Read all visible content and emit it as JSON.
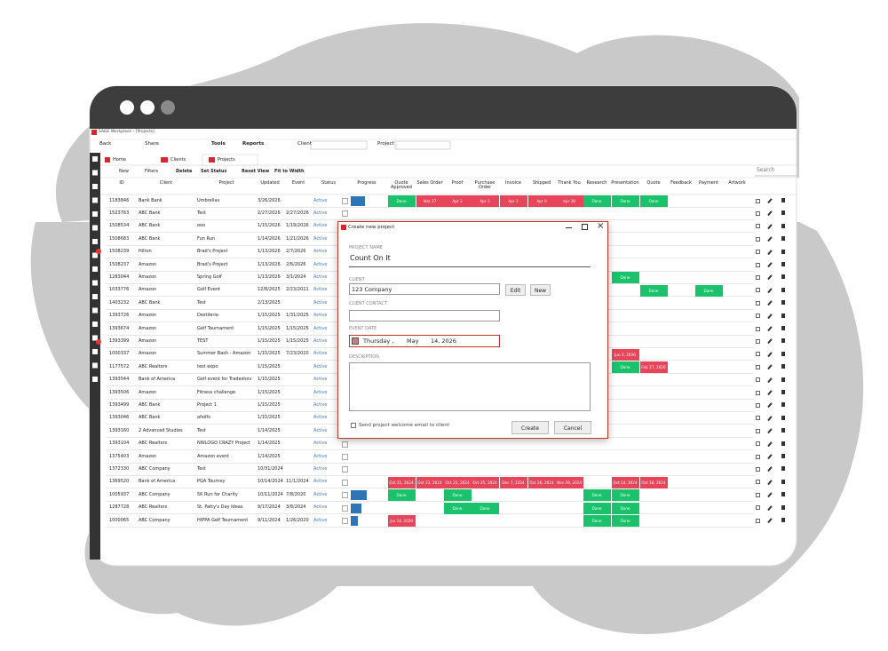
{
  "window": {
    "title": "SAGE Workplace - [Projects]"
  },
  "toolbar": {
    "back": "Back",
    "share": "Share",
    "tools": "Tools",
    "reports": "Reports",
    "client_label": "Client",
    "project_label": "Project"
  },
  "tabs": [
    "Home",
    "Clients",
    "Projects"
  ],
  "actions": [
    "New",
    "Filters",
    "Delete",
    "Set Status",
    "Reset View",
    "Fit to Width"
  ],
  "search": "Search",
  "table": {
    "columns": [
      "ID",
      "Client",
      "Project",
      "Updated",
      "Event",
      "Status",
      "Progress"
    ],
    "stage_columns": [
      "Quote Approved",
      "Sales Order",
      "Proof",
      "Purchase Order",
      "Invoice",
      "Shipped",
      "Thank You",
      "Research",
      "Presentation",
      "Quote",
      "Feedback",
      "Payment",
      "Artwork"
    ],
    "rows": [
      {
        "id": "1183846",
        "client": "Bank Bank",
        "project": "Umbrellas",
        "updated": "3/26/2026",
        "event": null,
        "status": "Active",
        "progress": 40,
        "stages": [
          {
            "text": "Done",
            "color": "#19c26b"
          },
          {
            "text": "Mar 27",
            "color": "#e8455b"
          },
          {
            "text": "Apr 2",
            "color": "#e8455b"
          },
          {
            "text": "Apr 2",
            "color": "#e8455b"
          },
          {
            "text": "Apr 2",
            "color": "#e8455b"
          },
          {
            "text": "Apr 9",
            "color": "#e8455b"
          },
          {
            "text": "Apr 28",
            "color": "#e8455b"
          },
          {
            "text": "Done",
            "color": "#19c26b"
          },
          {
            "text": "Done",
            "color": "#19c26b"
          },
          {
            "text": "Done",
            "color": "#19c26b"
          },
          null,
          null,
          null
        ]
      },
      {
        "id": "1523763",
        "client": "ABC Bank",
        "project": "Test",
        "updated": "2/27/2026",
        "event": "2/27/2026",
        "status": "Active",
        "progress": null,
        "stages": []
      },
      {
        "id": "1508534",
        "client": "ABC Bank",
        "project": "ooo",
        "updated": "1/15/2026",
        "event": "1/19/2026",
        "status": "Active",
        "progress": null,
        "stages": []
      },
      {
        "id": "1508683",
        "client": "ABC Bank",
        "project": "Fun Run",
        "updated": "1/14/2026",
        "event": "1/21/2026",
        "status": "Active",
        "progress": null,
        "stages": []
      },
      {
        "id": "1508239",
        "client": "Hilton",
        "project": "Brad's Project",
        "updated": "1/13/2026",
        "event": "2/7/2026",
        "status": "Active",
        "progress": null,
        "stages": []
      },
      {
        "id": "1508237",
        "client": "Amazon",
        "project": "Brad's Project",
        "updated": "1/13/2026",
        "event": "2/6/2026",
        "status": "Active",
        "progress": null,
        "stages": []
      },
      {
        "id": "1283044",
        "client": "Amazon",
        "project": "Spring Golf",
        "updated": "1/13/2026",
        "event": "3/1/2024",
        "status": "Active",
        "progress": null,
        "stages": [
          null,
          null,
          null,
          null,
          null,
          null,
          null,
          null,
          {
            "text": "Done",
            "color": "#19c26b"
          },
          null,
          null,
          null,
          null
        ]
      },
      {
        "id": "1033776",
        "client": "Amazon",
        "project": "Golf Event",
        "updated": "12/8/2025",
        "event": "2/23/2021",
        "status": "Active",
        "progress": null,
        "stages": [
          null,
          null,
          null,
          null,
          null,
          null,
          null,
          null,
          null,
          {
            "text": "Done",
            "color": "#19c26b"
          },
          null,
          {
            "text": "Done",
            "color": "#19c26b"
          },
          null
        ]
      },
      {
        "id": "1403232",
        "client": "ABC Bank",
        "project": "Test",
        "updated": "2/13/2025",
        "event": null,
        "status": "Active",
        "progress": null,
        "stages": []
      },
      {
        "id": "1393726",
        "client": "Amazon",
        "project": "Destileria",
        "updated": "1/15/2025",
        "event": "1/31/2025",
        "status": "Active",
        "progress": null,
        "stages": []
      },
      {
        "id": "1393674",
        "client": "Amazon",
        "project": "Golf Tournament",
        "updated": "1/15/2025",
        "event": "1/15/2025",
        "status": "Active",
        "progress": null,
        "stages": []
      },
      {
        "id": "1393399",
        "client": "Amazon",
        "project": "TEST",
        "updated": "1/15/2025",
        "event": "1/15/2025",
        "status": "Active",
        "progress": null,
        "stages": []
      },
      {
        "id": "1000337",
        "client": "Amazon",
        "project": "Summer Bash - Amazon",
        "updated": "1/15/2025",
        "event": "7/23/2020",
        "status": "Active",
        "progress": null,
        "stages": [
          null,
          null,
          null,
          null,
          null,
          null,
          null,
          null,
          {
            "text": "Jun 3, 2026",
            "color": "#e8455b"
          },
          null,
          null,
          null,
          null
        ]
      },
      {
        "id": "1177572",
        "client": "ABC Realtors",
        "project": "test expo",
        "updated": "1/15/2025",
        "event": null,
        "status": "Active",
        "progress": null,
        "stages": [
          null,
          null,
          null,
          null,
          null,
          null,
          null,
          null,
          {
            "text": "Done",
            "color": "#19c26b"
          },
          {
            "text": "Feb 27, 2026",
            "color": "#e8455b"
          },
          null,
          null,
          null
        ]
      },
      {
        "id": "1393544",
        "client": "Bank of America",
        "project": "Golf event for Tradeshov",
        "updated": "1/15/2025",
        "event": null,
        "status": "Active",
        "progress": null,
        "stages": []
      },
      {
        "id": "1393506",
        "client": "Amazon",
        "project": "Fitness challenge",
        "updated": "1/15/2025",
        "event": null,
        "status": "Active",
        "progress": null,
        "stages": []
      },
      {
        "id": "1393499",
        "client": "ABC Bank",
        "project": "Project 1",
        "updated": "1/15/2025",
        "event": null,
        "status": "Active",
        "progress": null,
        "stages": []
      },
      {
        "id": "1393046",
        "client": "ABC Bank",
        "project": "afsdfs",
        "updated": "1/15/2025",
        "event": null,
        "status": "Active",
        "progress": null,
        "stages": []
      },
      {
        "id": "1393160",
        "client": "2 Advanced Studios",
        "project": "Test",
        "updated": "1/14/2025",
        "event": null,
        "status": "Active",
        "progress": null,
        "stages": []
      },
      {
        "id": "1393104",
        "client": "ABC Realtors",
        "project": "NWLOGO CRAZY Project",
        "updated": "1/14/2025",
        "event": null,
        "status": "Active",
        "progress": null,
        "stages": []
      },
      {
        "id": "1375403",
        "client": "Amazon",
        "project": "Amazon event",
        "updated": "1/14/2025",
        "event": null,
        "status": "Active",
        "progress": null,
        "stages": []
      },
      {
        "id": "1372330",
        "client": "ABC Company",
        "project": "Test",
        "updated": "10/31/2024",
        "event": null,
        "status": "Active",
        "progress": null,
        "stages": []
      },
      {
        "id": "1369520",
        "client": "Bank of America",
        "project": "PGA Tourney",
        "updated": "10/14/2024",
        "event": "11/1/2024",
        "status": "Active",
        "progress": null,
        "stages": [
          {
            "text": "Oct 21, 2024",
            "color": "#e8455b"
          },
          {
            "text": "Oct 23, 2024",
            "color": "#e8455b"
          },
          {
            "text": "Oct 25, 2024",
            "color": "#e8455b"
          },
          {
            "text": "Oct 25, 2024",
            "color": "#e8455b"
          },
          {
            "text": "Dec 7, 2024",
            "color": "#e8455b"
          },
          {
            "text": "Oct 26, 2024",
            "color": "#e8455b"
          },
          {
            "text": "Nov 29, 2024",
            "color": "#e8455b"
          },
          null,
          {
            "text": "Oct 14, 2024",
            "color": "#e8455b"
          },
          {
            "text": "Oct 18, 2024",
            "color": "#e8455b"
          },
          null,
          null,
          null
        ]
      },
      {
        "id": "1005937",
        "client": "ABC Company",
        "project": "5K Run for Charity",
        "updated": "10/11/2024",
        "event": "7/8/2020",
        "status": "Active",
        "progress": 45,
        "stages": [
          {
            "text": "Done",
            "color": "#19c26b"
          },
          null,
          {
            "text": "Done",
            "color": "#19c26b"
          },
          null,
          null,
          null,
          null,
          {
            "text": "Done",
            "color": "#19c26b"
          },
          {
            "text": "Done",
            "color": "#19c26b"
          },
          null,
          null,
          null,
          null
        ]
      },
      {
        "id": "1287728",
        "client": "ABC Realtors",
        "project": "St. Patty's Day Ideas",
        "updated": "9/17/2024",
        "event": "3/8/2024",
        "status": "Active",
        "progress": 30,
        "stages": [
          null,
          null,
          {
            "text": "Done",
            "color": "#19c26b"
          },
          {
            "text": "Done",
            "color": "#19c26b"
          },
          null,
          null,
          null,
          {
            "text": "Done",
            "color": "#19c26b"
          },
          {
            "text": "Done",
            "color": "#19c26b"
          },
          null,
          null,
          null,
          null
        ]
      },
      {
        "id": "1000065",
        "client": "ABC Company",
        "project": "HIPPA Golf Tournament",
        "updated": "9/11/2024",
        "event": "1/26/2020",
        "status": "Active",
        "progress": 20,
        "stages": [
          {
            "text": "Jan 24, 2020",
            "color": "#e8455b"
          },
          null,
          null,
          null,
          null,
          null,
          null,
          {
            "text": "Done",
            "color": "#19c26b"
          },
          {
            "text": "Done",
            "color": "#19c26b"
          },
          null,
          null,
          null,
          null
        ]
      }
    ]
  },
  "dialog": {
    "title": "Create new project",
    "project_name_label": "PROJECT NAME",
    "project_name": "Count On It",
    "client_label": "CLIENT",
    "client": "123 Company",
    "edit": "Edit",
    "new": "New",
    "contact_label": "CLIENT CONTACT",
    "event_date_label": "EVENT DATE",
    "weekday": "Thursday ,",
    "month": "May",
    "day_year": "14, 2026",
    "description_label": "DESCRIPTION",
    "welcome_email": "Send project welcome email to client",
    "create": "Create",
    "cancel": "Cancel"
  }
}
